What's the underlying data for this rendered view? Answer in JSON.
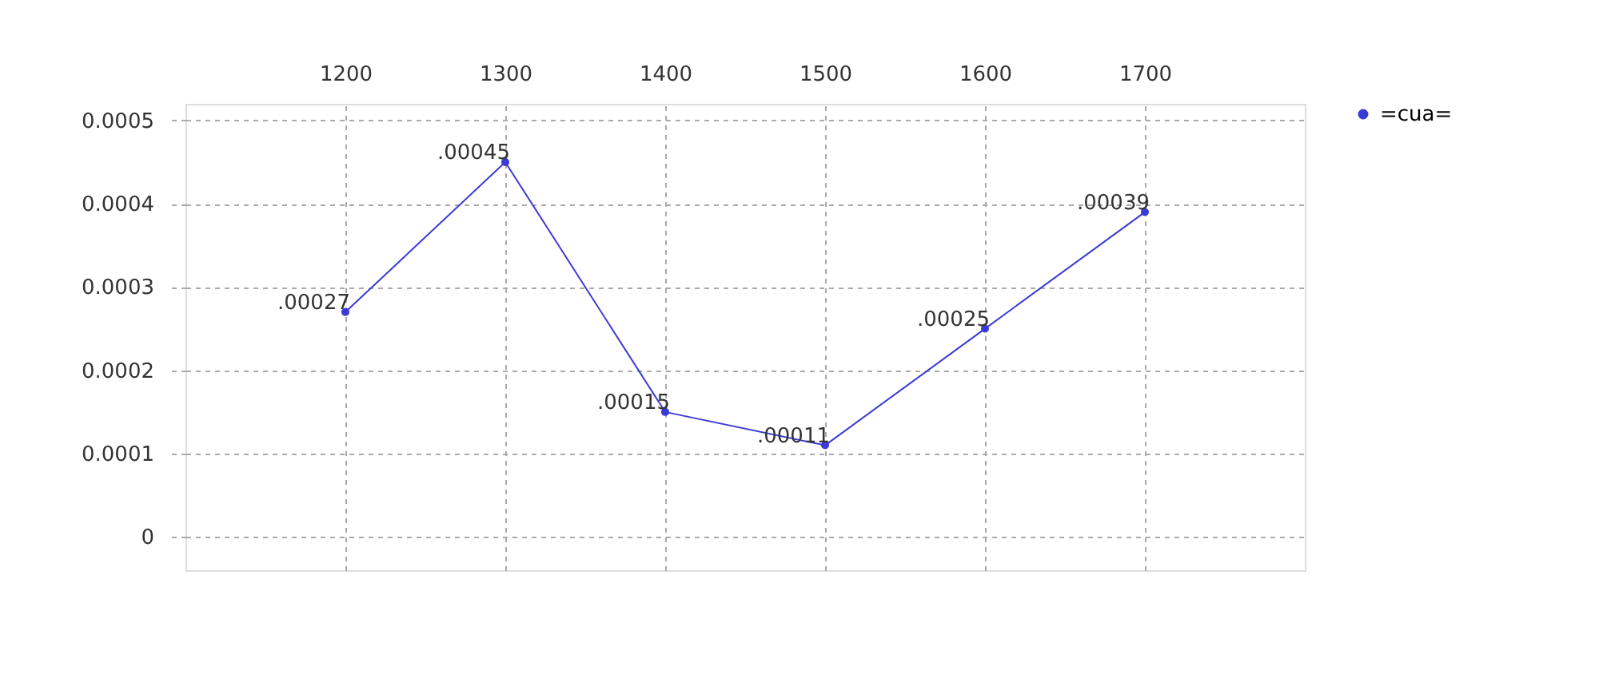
{
  "chart_data": {
    "type": "line",
    "x": [
      1200,
      1300,
      1400,
      1500,
      1600,
      1700
    ],
    "series": [
      {
        "name": "=cua=",
        "color": "#3a3ad6",
        "values": [
          0.00027,
          0.00045,
          0.00015,
          0.00011,
          0.00025,
          0.00039
        ],
        "value_labels": [
          ".00027",
          ".00045",
          ".00015",
          ".00011",
          ".00025",
          ".00039"
        ]
      }
    ],
    "xlim": [
      1100,
      1800
    ],
    "xticks": [
      1200,
      1300,
      1400,
      1500,
      1600,
      1700
    ],
    "ylim": [
      -4e-05,
      0.00052
    ],
    "yticks": [
      0,
      0.0001,
      0.0002,
      0.0003,
      0.0004,
      0.0005
    ],
    "grid": true,
    "legend": "right",
    "marker": "circle",
    "line_style": "solid"
  }
}
